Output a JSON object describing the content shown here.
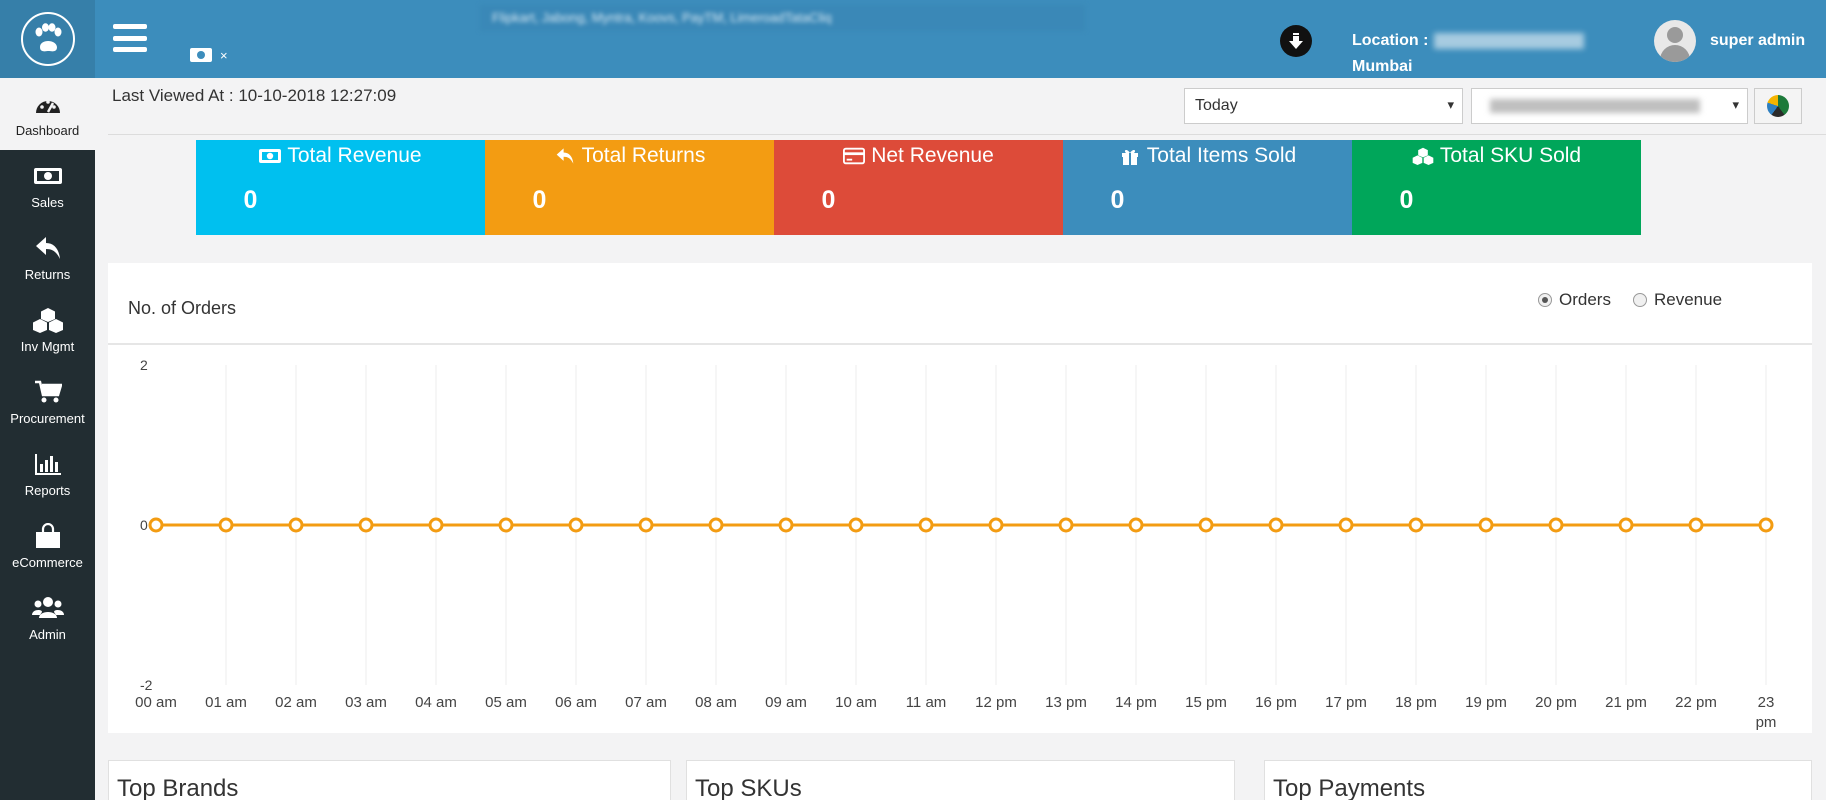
{
  "header": {
    "tab_chip_close": "×",
    "marquee": "Flipkart, Jabong, Myntra, Koovs, PayTM, LimeroadTataCliq",
    "location_label": "Location :",
    "location_city": "Mumbai",
    "user_name": "super admin"
  },
  "sidebar": {
    "items": [
      {
        "label": "Dashboard",
        "icon": "dashboard-icon"
      },
      {
        "label": "Sales",
        "icon": "money-icon"
      },
      {
        "label": "Returns",
        "icon": "reply-icon"
      },
      {
        "label": "Inv Mgmt",
        "icon": "cubes-icon"
      },
      {
        "label": "Procurement",
        "icon": "cart-icon"
      },
      {
        "label": "Reports",
        "icon": "bar-chart-icon"
      },
      {
        "label": "eCommerce",
        "icon": "shopping-bag-icon"
      },
      {
        "label": "Admin",
        "icon": "users-icon"
      }
    ]
  },
  "toolbar": {
    "last_viewed": "Last Viewed At : 10-10-2018 12:27:09",
    "period_selected": "Today",
    "caret": "▾"
  },
  "tiles": [
    {
      "title": "Total Revenue",
      "value": "0",
      "color": "#00c0ef",
      "icon": "money-icon"
    },
    {
      "title": "Total Returns",
      "value": "0",
      "color": "#f39c12",
      "icon": "reply-icon"
    },
    {
      "title": "Net Revenue",
      "value": "0",
      "color": "#dd4b39",
      "icon": "credit-card-icon"
    },
    {
      "title": "Total Items Sold",
      "value": "0",
      "color": "#3c8dbc",
      "icon": "gift-icon"
    },
    {
      "title": "Total SKU Sold",
      "value": "0",
      "color": "#00a65a",
      "icon": "cubes-icon"
    }
  ],
  "chart_panel": {
    "title": "No. of Orders",
    "radios": [
      {
        "label": "Orders",
        "checked": true
      },
      {
        "label": "Revenue",
        "checked": false
      }
    ]
  },
  "chart_data": {
    "type": "line",
    "categories": [
      "00 am",
      "01 am",
      "02 am",
      "03 am",
      "04 am",
      "05 am",
      "06 am",
      "07 am",
      "08 am",
      "09 am",
      "10 am",
      "11 am",
      "12 pm",
      "13 pm",
      "14 pm",
      "15 pm",
      "16 pm",
      "17 pm",
      "18 pm",
      "19 pm",
      "20 pm",
      "21 pm",
      "22 pm",
      "23 pm"
    ],
    "series": [
      {
        "values": [
          0,
          0,
          0,
          0,
          0,
          0,
          0,
          0,
          0,
          0,
          0,
          0,
          0,
          0,
          0,
          0,
          0,
          0,
          0,
          0,
          0,
          0,
          0,
          0
        ],
        "color": "#f39c12"
      }
    ],
    "yticks": [
      "2",
      "0",
      "-2"
    ],
    "ylim": [
      -2,
      2
    ],
    "grid": "vertical"
  },
  "bottom_panels": [
    {
      "title": "Top Brands"
    },
    {
      "title": "Top SKUs"
    },
    {
      "title": "Top Payments"
    }
  ]
}
